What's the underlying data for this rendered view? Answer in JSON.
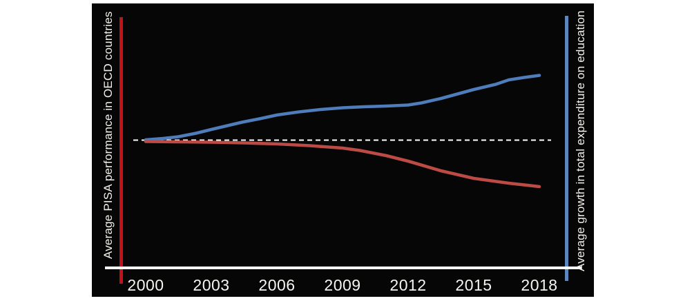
{
  "page": {
    "background_color": "#ffffff"
  },
  "chart": {
    "background_color": "#060606",
    "text_color": "#f4f1ec",
    "left_axis": {
      "label": "Average PISA performance in OECD countries",
      "line_color": "#c1121a"
    },
    "right_axis": {
      "label": "Average growth in total expenditure on education",
      "line_color": "#5b87bd"
    },
    "x_axis": {
      "line_color": "#ffffff",
      "tick_labels": [
        "2000",
        "2003",
        "2006",
        "2009",
        "2012",
        "2015",
        "2018"
      ]
    },
    "baseline": {
      "style": "dashed",
      "color": "#ffffff"
    }
  },
  "chart_data": {
    "type": "line",
    "title": "",
    "xlabel": "",
    "ylabel_left": "Average PISA performance in OECD countries",
    "ylabel_right": "Average growth in total expenditure on education",
    "x_ticks": [
      2000,
      2003,
      2006,
      2009,
      2012,
      2015,
      2018
    ],
    "x_range": [
      2000,
      2018
    ],
    "baseline_value": 0,
    "units": "relative index vs. 2000 baseline (y-axis unlabeled in source; values estimated from pixels)",
    "grid": false,
    "legend": "none (series identified by colored side axes)",
    "series": [
      {
        "name": "Average growth in total expenditure on education",
        "color": "#4f7cba",
        "x": [
          2000,
          2000.8,
          2001.5,
          2002.3,
          2003,
          2004.4,
          2005.2,
          2006,
          2007,
          2008,
          2009,
          2010,
          2011,
          2012,
          2012.6,
          2013.5,
          2015,
          2016,
          2016.6,
          2017.3,
          2018
        ],
        "values": [
          0.5,
          2.5,
          5,
          10,
          15.5,
          26,
          31,
          36.5,
          41,
          44.5,
          47,
          48.5,
          49.5,
          51,
          54,
          60.5,
          73.5,
          81,
          87.5,
          91,
          94
        ]
      },
      {
        "name": "Average PISA performance in OECD countries",
        "color": "#bc4a45",
        "x": [
          2000,
          2001.5,
          2003,
          2004.5,
          2006,
          2007.5,
          2009,
          2009.8,
          2011,
          2012,
          2013.5,
          2015,
          2016.6,
          2018
        ],
        "values": [
          -2,
          -2.5,
          -3,
          -4,
          -5.5,
          -8,
          -11.5,
          -15,
          -22.5,
          -30.5,
          -44.5,
          -55.5,
          -62.5,
          -67.5
        ]
      }
    ]
  }
}
